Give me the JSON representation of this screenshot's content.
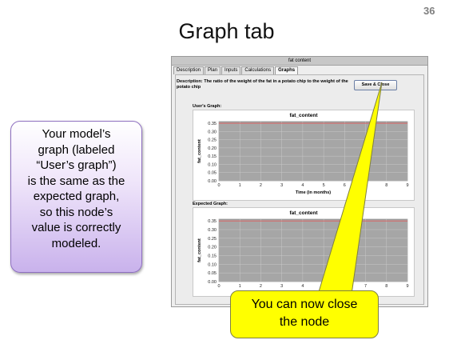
{
  "slide": {
    "number": "36",
    "title": "Graph tab"
  },
  "window": {
    "title": "fat content",
    "tabs": [
      "Description",
      "Plan",
      "Inputs",
      "Calculations",
      "Graphs"
    ],
    "active_tab": "Graphs",
    "description": "Description: The ratio of the weight of the fat in a potato chip to the weight of the potato chip",
    "save_close_label": "Save & Close",
    "users_graph_label": "User's Graph:",
    "expected_graph_label": "Expected Graph:"
  },
  "chart_data": [
    {
      "type": "line",
      "title": "fat_content",
      "xlabel": "Time (in months)",
      "ylabel": "fat_content",
      "x_ticks": [
        "0",
        "1",
        "2",
        "3",
        "4",
        "5",
        "6",
        "7",
        "8",
        "9"
      ],
      "y_ticks": [
        "0.00",
        "0.05",
        "0.10",
        "0.15",
        "0.20",
        "0.25",
        "0.30",
        "0.35"
      ],
      "xlim": [
        0,
        9
      ],
      "ylim": [
        0,
        0.36
      ],
      "grid": true,
      "series": [
        {
          "x": [
            0,
            9
          ],
          "y": [
            0.35,
            0.35
          ],
          "color": "#e05a5a"
        }
      ]
    },
    {
      "type": "line",
      "title": "fat_content",
      "xlabel": "",
      "ylabel": "fat_content",
      "x_ticks": [
        "0",
        "1",
        "2",
        "3",
        "4",
        "5",
        "6",
        "7",
        "8",
        "9"
      ],
      "y_ticks": [
        "0.00",
        "0.05",
        "0.10",
        "0.15",
        "0.20",
        "0.25",
        "0.30",
        "0.35"
      ],
      "xlim": [
        0,
        9
      ],
      "ylim": [
        0,
        0.36
      ],
      "grid": true,
      "series": [
        {
          "x": [
            0,
            9
          ],
          "y": [
            0.35,
            0.35
          ],
          "color": "#e05a5a"
        }
      ]
    }
  ],
  "callouts": {
    "left_lines": [
      "Your model’s",
      "graph (labeled",
      "“User’s graph”)",
      "is the same as the",
      "expected graph,",
      "so this node’s",
      "value is correctly",
      "modeled."
    ],
    "yellow_lines": [
      "You can now close",
      "the node"
    ]
  },
  "colors": {
    "plot_bg": "#a6a6a6",
    "line": "#e05a5a",
    "callout_yellow": "#ffff00",
    "callout_purple": "#c9b2ec"
  }
}
